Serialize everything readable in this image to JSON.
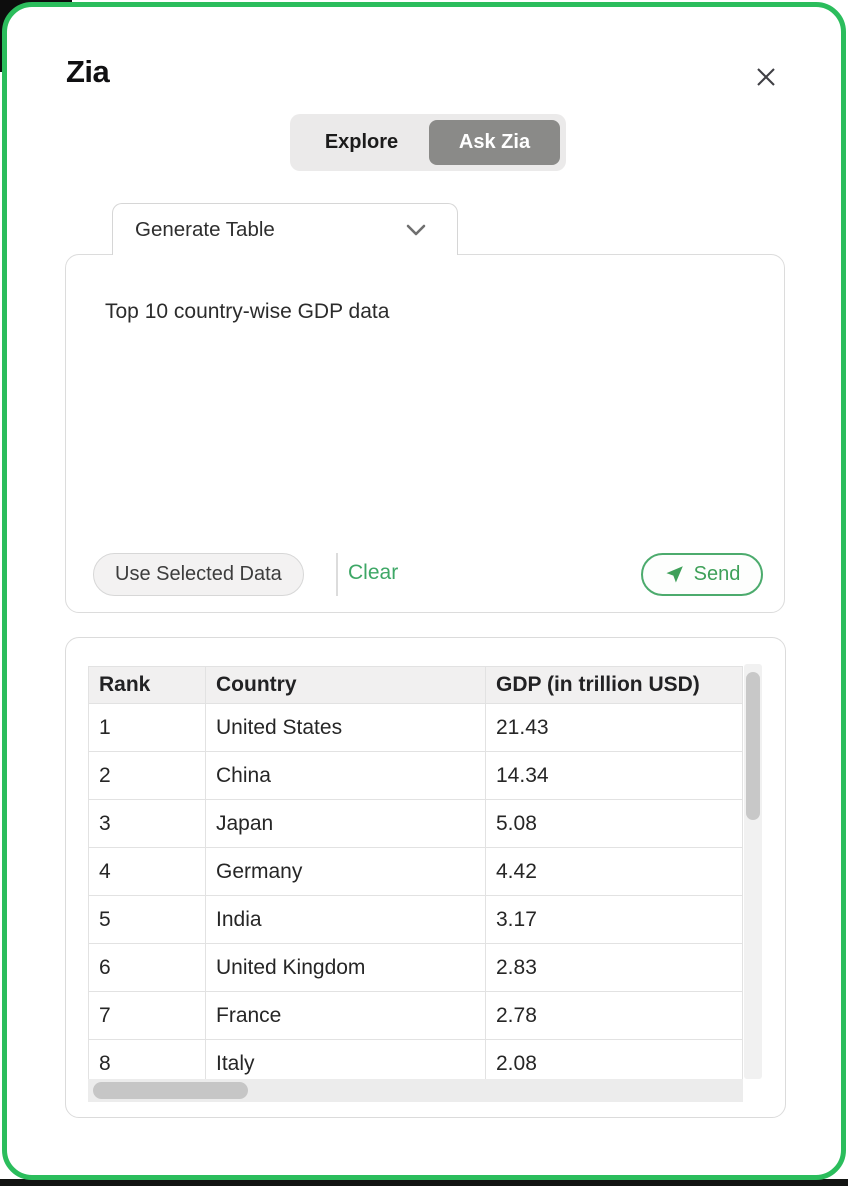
{
  "title": "Zia",
  "colors": {
    "frame_green": "#2bbd5c",
    "active_segment_bg": "#8a8a88",
    "link_green": "#3ea766",
    "send_green": "#3ea059"
  },
  "toggle": {
    "options": [
      {
        "label": "Explore",
        "active": false
      },
      {
        "label": "Ask Zia",
        "active": true
      }
    ]
  },
  "mode_dropdown": {
    "selected": "Generate Table"
  },
  "prompt": {
    "text": "Top 10 country-wise GDP data"
  },
  "actions": {
    "use_selected_data": "Use Selected Data",
    "clear": "Clear",
    "send": "Send"
  },
  "icons": {
    "close": "close-icon",
    "chevron": "chevron-down-icon",
    "send": "send-paper-plane-icon"
  },
  "table": {
    "columns": [
      "Rank",
      "Country",
      "GDP (in trillion USD)"
    ],
    "rows": [
      [
        "1",
        "United States",
        "21.43"
      ],
      [
        "2",
        "China",
        "14.34"
      ],
      [
        "3",
        "Japan",
        "5.08"
      ],
      [
        "4",
        "Germany",
        "4.42"
      ],
      [
        "5",
        "India",
        "3.17"
      ],
      [
        "6",
        "United Kingdom",
        "2.83"
      ],
      [
        "7",
        "France",
        "2.78"
      ],
      [
        "8",
        "Italy",
        "2.08"
      ]
    ]
  }
}
